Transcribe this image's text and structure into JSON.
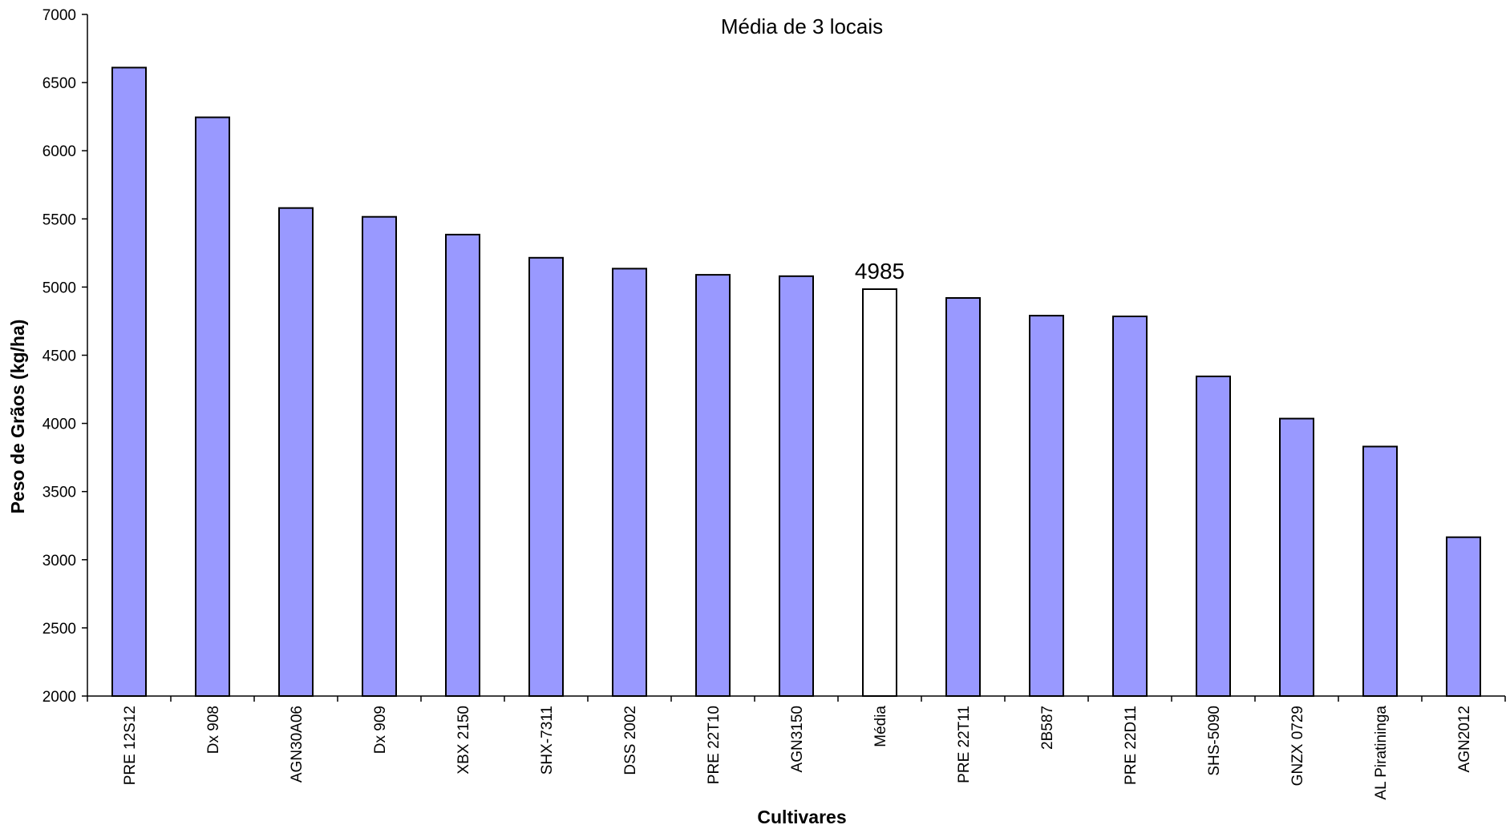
{
  "chart_data": {
    "type": "bar",
    "title": "Média de 3 locais",
    "xlabel": "Cultivares",
    "ylabel": "Peso de Grãos (kg/ha)",
    "ylim": [
      2000,
      7000
    ],
    "yticks": [
      2000,
      2500,
      3000,
      3500,
      4000,
      4500,
      5000,
      5500,
      6000,
      6500,
      7000
    ],
    "grid": false,
    "legend": "none",
    "categories": [
      "PRE 12S12",
      "Dx 908",
      "AGN30A06",
      "Dx 909",
      "XBX 2150",
      "SHX-7311",
      "DSS 2002",
      "PRE 22T10",
      "AGN3150",
      "Média",
      "PRE 22T11",
      "2B587",
      "PRE 22D11",
      "SHS-5090",
      "GNZX 0729",
      "AL Piratininga",
      "AGN2012"
    ],
    "values": [
      6610,
      6245,
      5580,
      5515,
      5385,
      5215,
      5135,
      5090,
      5080,
      4985,
      4920,
      4790,
      4785,
      4345,
      4035,
      3830,
      3165
    ],
    "highlight_category": "Média",
    "data_labels": [
      {
        "category": "Média",
        "text": "4985"
      }
    ],
    "colors": {
      "bar": "#9999ff",
      "highlight_bar": "#ffffff",
      "bar_stroke": "#000000",
      "axis": "#000000"
    }
  }
}
